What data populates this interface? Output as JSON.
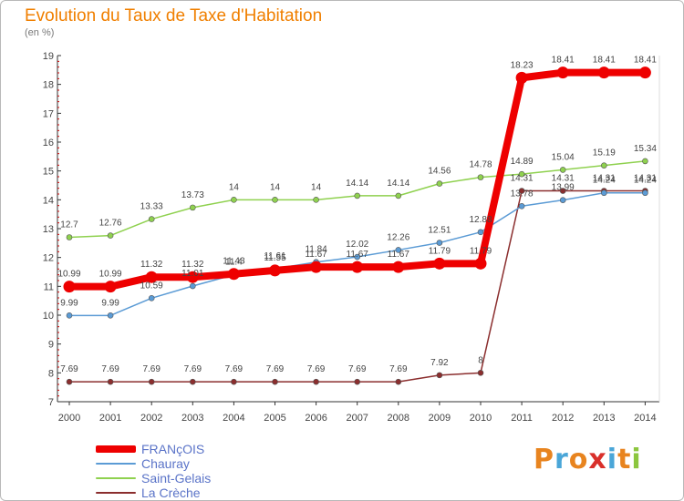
{
  "title": "Evolution du Taux de Taxe d'Habitation",
  "subtitle": "(en %)",
  "logo": {
    "text": "Proxiti",
    "letters": [
      {
        "c": "P",
        "color": "#e8841f"
      },
      {
        "c": "r",
        "color": "#4aa6d8"
      },
      {
        "c": "o",
        "color": "#e8841f"
      },
      {
        "c": "x",
        "color": "#d9302b"
      },
      {
        "c": "i",
        "color": "#4aa6d8"
      },
      {
        "c": "t",
        "color": "#e8841f"
      },
      {
        "c": "i",
        "color": "#8cc63e"
      }
    ]
  },
  "chart_data": {
    "type": "line",
    "title": "Evolution du Taux de Taxe d'Habitation",
    "subtitle": "(en %)",
    "xlabel": "",
    "ylabel": "",
    "categories": [
      "2000",
      "2001",
      "2002",
      "2003",
      "2004",
      "2005",
      "2006",
      "2007",
      "2008",
      "2009",
      "2010",
      "2011",
      "2012",
      "2013",
      "2014"
    ],
    "ylim": [
      7,
      19
    ],
    "yticks": [
      7,
      8,
      9,
      10,
      11,
      12,
      13,
      14,
      15,
      16,
      17,
      18,
      19
    ],
    "grid": false,
    "legend_position": "bottom-left",
    "series": [
      {
        "name": "FRANçOIS",
        "color": "#ee0000",
        "values": [
          10.99,
          10.99,
          11.32,
          11.32,
          11.43,
          11.55,
          11.67,
          11.67,
          11.67,
          11.79,
          11.79,
          18.23,
          18.41,
          18.41,
          18.41
        ],
        "labels": [
          "10.99",
          "10.99",
          "11.32",
          "11.32",
          "11.43",
          "11.55",
          "11.67",
          "11.67",
          "11.67",
          "11.79",
          "11.79",
          "18.23",
          "18.41",
          "18.41",
          "18.41"
        ]
      },
      {
        "name": "Chauray",
        "color": "#5b9bd5",
        "values": [
          9.99,
          9.99,
          10.59,
          11.01,
          11.4,
          11.61,
          11.84,
          12.02,
          12.26,
          12.51,
          12.88,
          13.78,
          13.99,
          14.24,
          14.24
        ],
        "labels": [
          "9.99",
          "9.99",
          "10.59",
          "11.01",
          "11.4",
          "11.61",
          "11.84",
          "12.02",
          "12.26",
          "12.51",
          "12.88",
          "13.78",
          "13.99",
          "14.24",
          "14.24"
        ]
      },
      {
        "name": "Saint-Gelais",
        "color": "#8fd14f",
        "values": [
          12.7,
          12.76,
          13.33,
          13.73,
          14,
          14,
          14,
          14.14,
          14.14,
          14.56,
          14.78,
          14.89,
          15.04,
          15.19,
          15.34
        ],
        "labels": [
          "12.7",
          "12.76",
          "13.33",
          "13.73",
          "14",
          "14",
          "14",
          "14.14",
          "14.14",
          "14.56",
          "14.78",
          "14.89",
          "15.04",
          "15.19",
          "15.34"
        ]
      },
      {
        "name": "La Crèche",
        "color": "#8b2e2e",
        "values": [
          7.69,
          7.69,
          7.69,
          7.69,
          7.69,
          7.69,
          7.69,
          7.69,
          7.69,
          7.92,
          8,
          14.31,
          14.31,
          14.31,
          14.31
        ],
        "labels": [
          "7.69",
          "7.69",
          "7.69",
          "7.69",
          "7.69",
          "7.69",
          "7.69",
          "7.69",
          "7.69",
          "7.92",
          "8",
          "14.31",
          "14.31",
          "14.31",
          "14.31"
        ]
      }
    ]
  },
  "legend": [
    {
      "label": "FRANçOIS",
      "color": "#ee0000"
    },
    {
      "label": "Chauray",
      "color": "#5b9bd5"
    },
    {
      "label": "Saint-Gelais",
      "color": "#8fd14f"
    },
    {
      "label": "La Crèche",
      "color": "#8b2e2e"
    }
  ]
}
